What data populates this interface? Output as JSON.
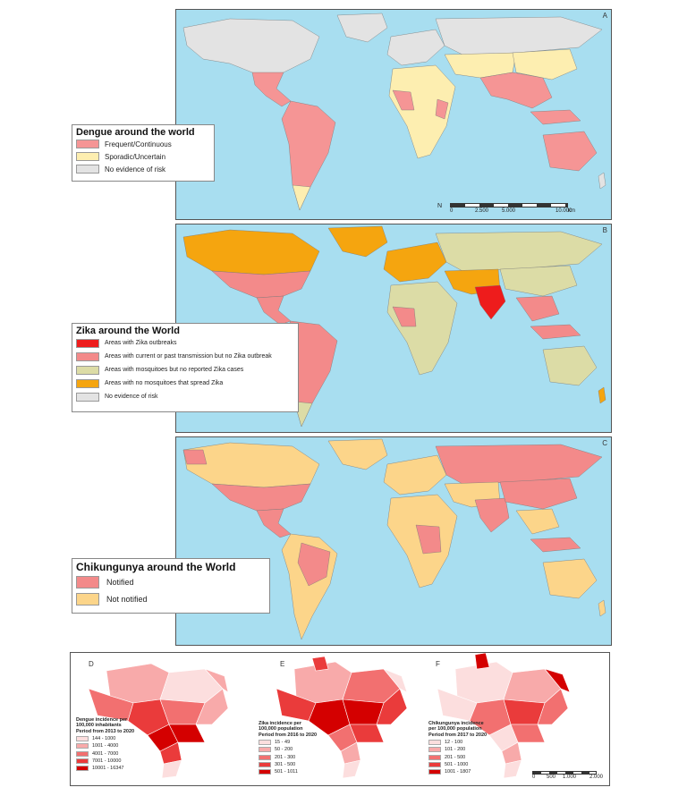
{
  "panels": {
    "A": {
      "letter": "A",
      "title": "Dengue around the world",
      "legend": [
        {
          "label": "Frequent/Continuous",
          "color": "#f59595"
        },
        {
          "label": "Sporadic/Uncertain",
          "color": "#fdeeb0"
        },
        {
          "label": "No evidence of risk",
          "color": "#e3e3e3"
        }
      ],
      "scale": {
        "ticks": [
          "0",
          "2.500",
          "5.000",
          "10.000"
        ],
        "unit": "km"
      },
      "north": "N"
    },
    "B": {
      "letter": "B",
      "title": "Zika around the World",
      "legend": [
        {
          "label": "Areas with Zika outbreaks",
          "color": "#ee1c1c"
        },
        {
          "label": "Areas with current or past transmission but no Zika outbreak",
          "color": "#f38a8a"
        },
        {
          "label": "Areas with mosquitoes but no reported Zika cases",
          "color": "#dcdca6"
        },
        {
          "label": "Areas with no mosquitoes that spread Zika",
          "color": "#f5a50f"
        },
        {
          "label": "No evidence of risk",
          "color": "#e3e3e3"
        }
      ]
    },
    "C": {
      "letter": "C",
      "title": "Chikungunya around the World",
      "legend": [
        {
          "label": "Notified",
          "color": "#f38a8a"
        },
        {
          "label": "Not notified",
          "color": "#fcd58a"
        }
      ]
    }
  },
  "brazil": {
    "D": {
      "letter": "D",
      "title": [
        "Dengue incidence per",
        "100,000 inhabitants",
        "Period from 2013 to 2020"
      ],
      "legend": [
        {
          "label": "144 - 1000",
          "color": "#fcdede"
        },
        {
          "label": "1001 - 4000",
          "color": "#f8aaaa"
        },
        {
          "label": "4001 - 7000",
          "color": "#f27070"
        },
        {
          "label": "7001 - 10000",
          "color": "#ea3b3b"
        },
        {
          "label": "10001 - 16347",
          "color": "#d40000"
        }
      ]
    },
    "E": {
      "letter": "E",
      "title": [
        "Zika incidence per",
        "100,000 population",
        "Period from 2016 to 2020"
      ],
      "legend": [
        {
          "label": "15 - 49",
          "color": "#fcdede"
        },
        {
          "label": "50 - 200",
          "color": "#f8aaaa"
        },
        {
          "label": "201 - 300",
          "color": "#f27070"
        },
        {
          "label": "301 - 500",
          "color": "#ea3b3b"
        },
        {
          "label": "501 - 1011",
          "color": "#d40000"
        }
      ]
    },
    "F": {
      "letter": "F",
      "title": [
        "Chikungunya incidence",
        "per 100,000 population",
        "Period from 2017 to 2020"
      ],
      "legend": [
        {
          "label": "12 - 100",
          "color": "#fcdede"
        },
        {
          "label": "101 - 200",
          "color": "#f8aaaa"
        },
        {
          "label": "201 - 500",
          "color": "#f27070"
        },
        {
          "label": "501 - 1000",
          "color": "#ea3b3b"
        },
        {
          "label": "1001 - 1807",
          "color": "#d40000"
        }
      ],
      "scale": [
        "0",
        "500",
        "1.000",
        "2.000"
      ]
    }
  },
  "colors": {
    "ocean": "#a8def0",
    "no_risk": "#e3e3e3",
    "dengue_frequent": "#f59595",
    "dengue_sporadic": "#fdeeb0",
    "zika_outbreak": "#ee1c1c",
    "zika_transmission": "#f38a8a",
    "zika_mosquito": "#dcdca6",
    "zika_nomosquito": "#f5a50f",
    "chik_notified": "#f38a8a",
    "chik_not": "#fcd58a"
  }
}
